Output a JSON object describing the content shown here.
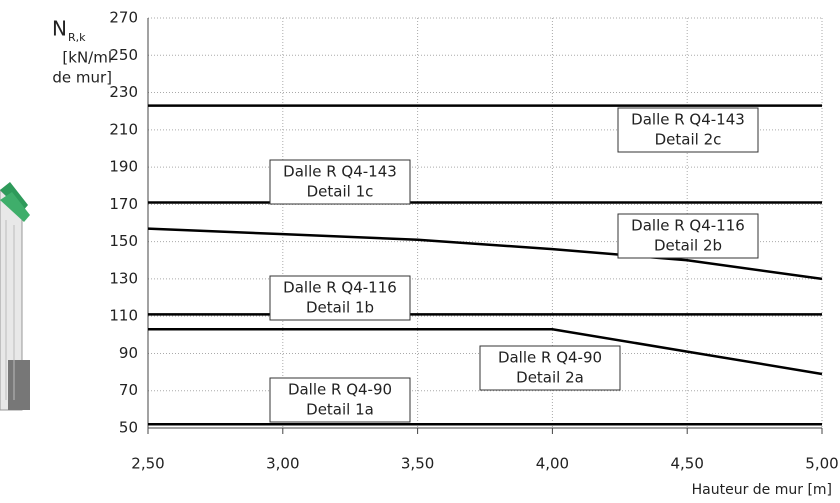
{
  "chart_data": {
    "type": "line",
    "y_label": {
      "symbol": "N",
      "subscript": "R,k",
      "unit_lines": [
        "[kN/ml",
        "de mur]"
      ]
    },
    "x_label": "Hauteur de mur [m]",
    "x": [
      2.5,
      3.0,
      3.5,
      4.0,
      4.5,
      5.0
    ],
    "series": [
      {
        "name": "Dalle R Q4-90",
        "detail": "Detail 1a",
        "color": "#000000",
        "values": [
          52,
          52,
          52,
          52,
          52,
          52
        ]
      },
      {
        "name": "Dalle R Q4-90",
        "detail": "Detail 2a",
        "color": "#000000",
        "values": [
          103,
          103,
          103,
          103,
          91,
          79
        ]
      },
      {
        "name": "Dalle R Q4-116",
        "detail": "Detail 1b",
        "color": "#000000",
        "values": [
          111,
          111,
          111,
          111,
          111,
          111
        ]
      },
      {
        "name": "Dalle R Q4-116",
        "detail": "Detail 2b",
        "color": "#000000",
        "values": [
          157,
          154,
          151,
          146,
          140,
          130
        ]
      },
      {
        "name": "Dalle R Q4-143",
        "detail": "Detail 1c",
        "color": "#000000",
        "values": [
          171,
          171,
          171,
          171,
          171,
          171
        ]
      },
      {
        "name": "Dalle R Q4-143",
        "detail": "Detail 2c",
        "color": "#000000",
        "values": [
          223,
          223,
          223,
          223,
          223,
          223
        ]
      }
    ],
    "xlim": [
      2.5,
      5.0
    ],
    "xticks": [
      {
        "value": 2.5,
        "label": "2,50"
      },
      {
        "value": 3.0,
        "label": "3,00"
      },
      {
        "value": 3.5,
        "label": "3,50"
      },
      {
        "value": 4.0,
        "label": "4,00"
      },
      {
        "value": 4.5,
        "label": "4,50"
      },
      {
        "value": 5.0,
        "label": "5,00"
      }
    ],
    "ylim": [
      50,
      270
    ],
    "yticks": [
      50,
      70,
      90,
      110,
      130,
      150,
      170,
      190,
      210,
      230,
      250,
      270
    ],
    "grid": true
  }
}
